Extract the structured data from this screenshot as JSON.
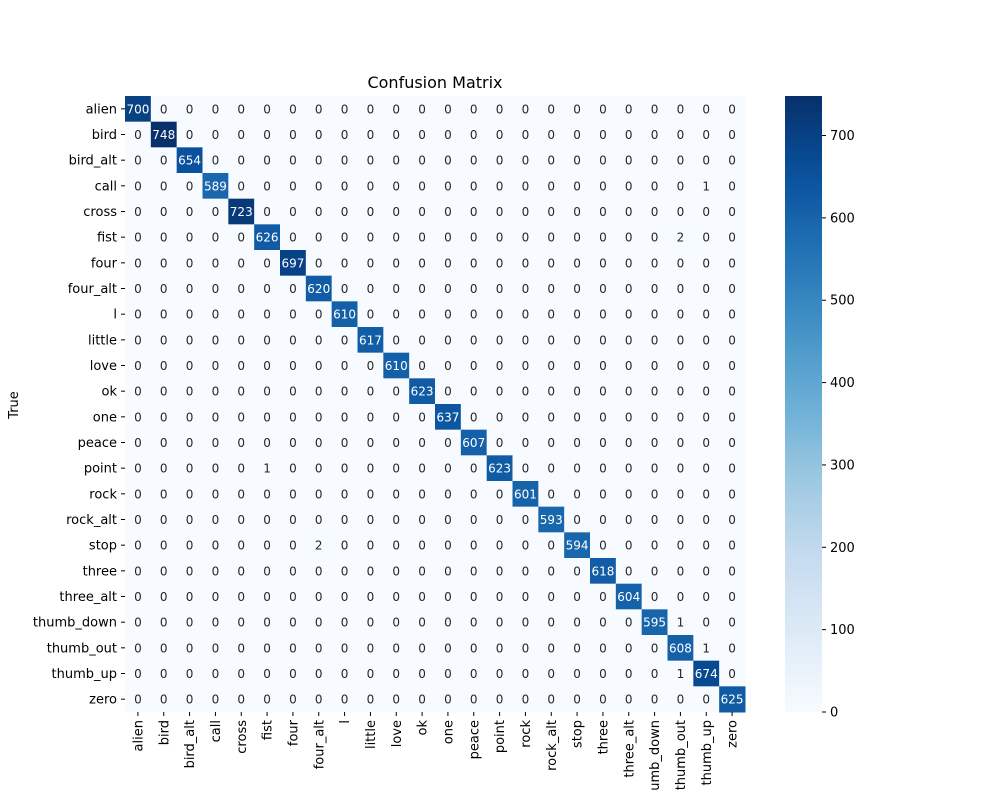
{
  "chart_data": {
    "type": "heatmap",
    "title": "Confusion Matrix",
    "ylabel": "True",
    "xlabel": "",
    "labels": [
      "alien",
      "bird",
      "bird_alt",
      "call",
      "cross",
      "fist",
      "four",
      "four_alt",
      "l",
      "little",
      "love",
      "ok",
      "one",
      "peace",
      "point",
      "rock",
      "rock_alt",
      "stop",
      "three",
      "three_alt",
      "thumb_down",
      "thumb_out",
      "thumb_up",
      "zero"
    ],
    "x_tick_labels": [
      "alien",
      "bird",
      "bird_alt",
      "call",
      "cross",
      "fist",
      "four",
      "four_alt",
      "l",
      "little",
      "love",
      "ok",
      "one",
      "peace",
      "point",
      "rock",
      "rock_alt",
      "stop",
      "three",
      "three_alt",
      "umb_down",
      "thumb_out",
      "thumb_up",
      "zero"
    ],
    "matrix": [
      [
        700,
        0,
        0,
        0,
        0,
        0,
        0,
        0,
        0,
        0,
        0,
        0,
        0,
        0,
        0,
        0,
        0,
        0,
        0,
        0,
        0,
        0,
        0,
        0
      ],
      [
        0,
        748,
        0,
        0,
        0,
        0,
        0,
        0,
        0,
        0,
        0,
        0,
        0,
        0,
        0,
        0,
        0,
        0,
        0,
        0,
        0,
        0,
        0,
        0
      ],
      [
        0,
        0,
        654,
        0,
        0,
        0,
        0,
        0,
        0,
        0,
        0,
        0,
        0,
        0,
        0,
        0,
        0,
        0,
        0,
        0,
        0,
        0,
        0,
        0
      ],
      [
        0,
        0,
        0,
        589,
        0,
        0,
        0,
        0,
        0,
        0,
        0,
        0,
        0,
        0,
        0,
        0,
        0,
        0,
        0,
        0,
        0,
        0,
        1,
        0
      ],
      [
        0,
        0,
        0,
        0,
        723,
        0,
        0,
        0,
        0,
        0,
        0,
        0,
        0,
        0,
        0,
        0,
        0,
        0,
        0,
        0,
        0,
        0,
        0,
        0
      ],
      [
        0,
        0,
        0,
        0,
        0,
        626,
        0,
        0,
        0,
        0,
        0,
        0,
        0,
        0,
        0,
        0,
        0,
        0,
        0,
        0,
        0,
        2,
        0,
        0
      ],
      [
        0,
        0,
        0,
        0,
        0,
        0,
        697,
        0,
        0,
        0,
        0,
        0,
        0,
        0,
        0,
        0,
        0,
        0,
        0,
        0,
        0,
        0,
        0,
        0
      ],
      [
        0,
        0,
        0,
        0,
        0,
        0,
        0,
        620,
        0,
        0,
        0,
        0,
        0,
        0,
        0,
        0,
        0,
        0,
        0,
        0,
        0,
        0,
        0,
        0
      ],
      [
        0,
        0,
        0,
        0,
        0,
        0,
        0,
        0,
        610,
        0,
        0,
        0,
        0,
        0,
        0,
        0,
        0,
        0,
        0,
        0,
        0,
        0,
        0,
        0
      ],
      [
        0,
        0,
        0,
        0,
        0,
        0,
        0,
        0,
        0,
        617,
        0,
        0,
        0,
        0,
        0,
        0,
        0,
        0,
        0,
        0,
        0,
        0,
        0,
        0
      ],
      [
        0,
        0,
        0,
        0,
        0,
        0,
        0,
        0,
        0,
        0,
        610,
        0,
        0,
        0,
        0,
        0,
        0,
        0,
        0,
        0,
        0,
        0,
        0,
        0
      ],
      [
        0,
        0,
        0,
        0,
        0,
        0,
        0,
        0,
        0,
        0,
        0,
        623,
        0,
        0,
        0,
        0,
        0,
        0,
        0,
        0,
        0,
        0,
        0,
        0
      ],
      [
        0,
        0,
        0,
        0,
        0,
        0,
        0,
        0,
        0,
        0,
        0,
        0,
        637,
        0,
        0,
        0,
        0,
        0,
        0,
        0,
        0,
        0,
        0,
        0
      ],
      [
        0,
        0,
        0,
        0,
        0,
        0,
        0,
        0,
        0,
        0,
        0,
        0,
        0,
        607,
        0,
        0,
        0,
        0,
        0,
        0,
        0,
        0,
        0,
        0
      ],
      [
        0,
        0,
        0,
        0,
        0,
        1,
        0,
        0,
        0,
        0,
        0,
        0,
        0,
        0,
        623,
        0,
        0,
        0,
        0,
        0,
        0,
        0,
        0,
        0
      ],
      [
        0,
        0,
        0,
        0,
        0,
        0,
        0,
        0,
        0,
        0,
        0,
        0,
        0,
        0,
        0,
        601,
        0,
        0,
        0,
        0,
        0,
        0,
        0,
        0
      ],
      [
        0,
        0,
        0,
        0,
        0,
        0,
        0,
        0,
        0,
        0,
        0,
        0,
        0,
        0,
        0,
        0,
        593,
        0,
        0,
        0,
        0,
        0,
        0,
        0
      ],
      [
        0,
        0,
        0,
        0,
        0,
        0,
        0,
        2,
        0,
        0,
        0,
        0,
        0,
        0,
        0,
        0,
        0,
        594,
        0,
        0,
        0,
        0,
        0,
        0
      ],
      [
        0,
        0,
        0,
        0,
        0,
        0,
        0,
        0,
        0,
        0,
        0,
        0,
        0,
        0,
        0,
        0,
        0,
        0,
        618,
        0,
        0,
        0,
        0,
        0
      ],
      [
        0,
        0,
        0,
        0,
        0,
        0,
        0,
        0,
        0,
        0,
        0,
        0,
        0,
        0,
        0,
        0,
        0,
        0,
        0,
        604,
        0,
        0,
        0,
        0
      ],
      [
        0,
        0,
        0,
        0,
        0,
        0,
        0,
        0,
        0,
        0,
        0,
        0,
        0,
        0,
        0,
        0,
        0,
        0,
        0,
        0,
        595,
        1,
        0,
        0
      ],
      [
        0,
        0,
        0,
        0,
        0,
        0,
        0,
        0,
        0,
        0,
        0,
        0,
        0,
        0,
        0,
        0,
        0,
        0,
        0,
        0,
        0,
        608,
        1,
        0
      ],
      [
        0,
        0,
        0,
        0,
        0,
        0,
        0,
        0,
        0,
        0,
        0,
        0,
        0,
        0,
        0,
        0,
        0,
        0,
        0,
        0,
        0,
        1,
        674,
        0
      ],
      [
        0,
        0,
        0,
        0,
        0,
        0,
        0,
        0,
        0,
        0,
        0,
        0,
        0,
        0,
        0,
        0,
        0,
        0,
        0,
        0,
        0,
        0,
        0,
        625
      ]
    ],
    "colorbar": {
      "min": 0,
      "max": 748,
      "ticks": [
        0,
        100,
        200,
        300,
        400,
        500,
        600,
        700
      ]
    },
    "colormap": "Blues",
    "colors": {
      "low": "#f7fbff",
      "high": "#08306b",
      "dark_text": "#262626",
      "light_text": "#ffffff"
    }
  }
}
